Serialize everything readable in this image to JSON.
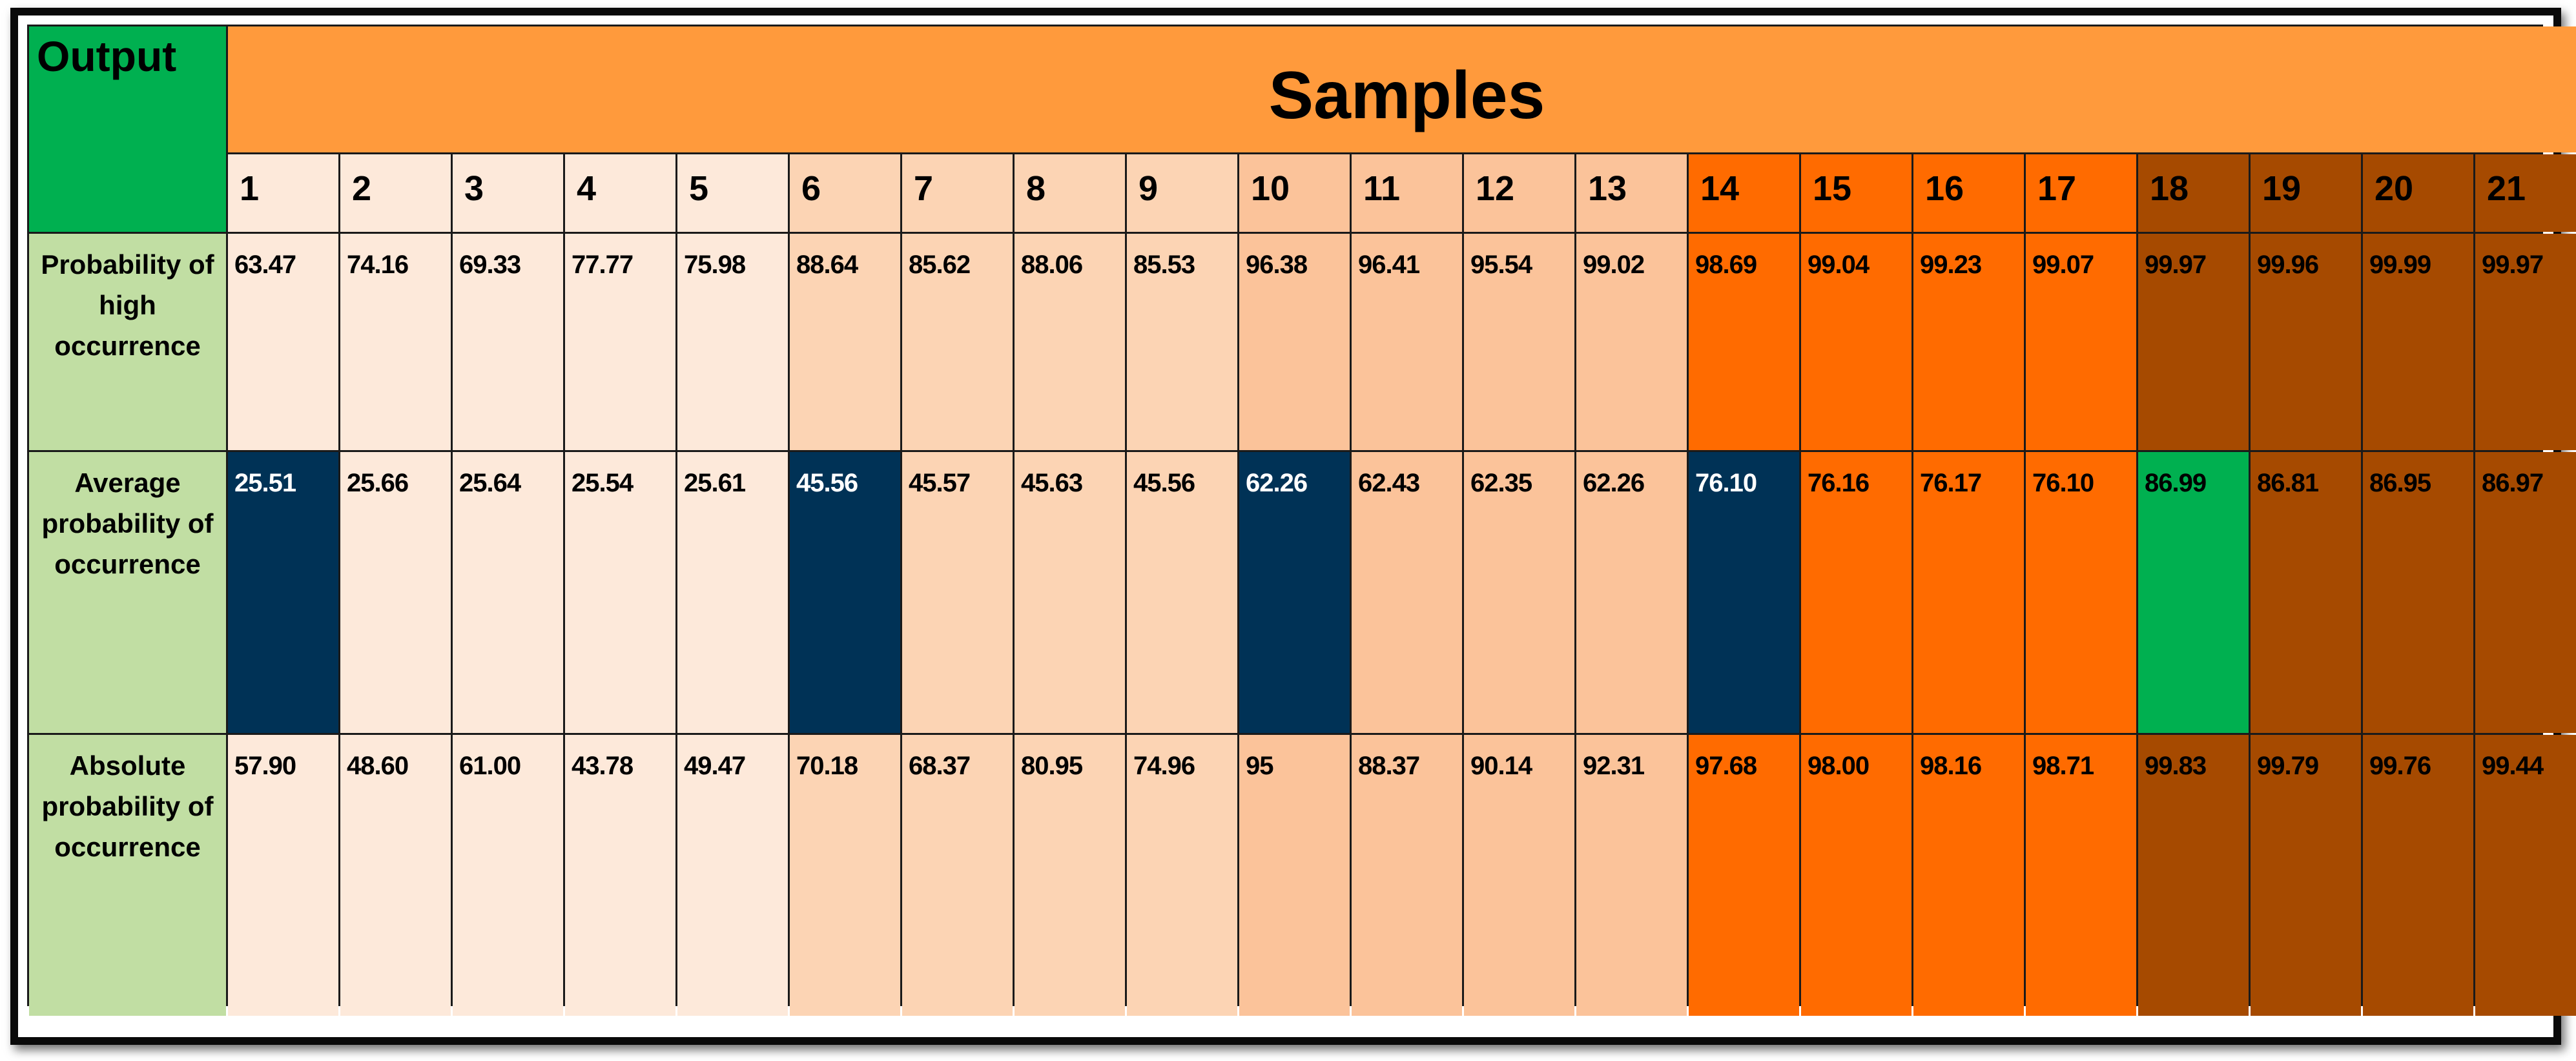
{
  "chart_data": {
    "type": "table",
    "corner_label": "Output",
    "group_header": "Samples",
    "columns": [
      "1",
      "2",
      "3",
      "4",
      "5",
      "6",
      "7",
      "8",
      "9",
      "10",
      "11",
      "12",
      "13",
      "14",
      "15",
      "16",
      "17",
      "18",
      "19",
      "20",
      "21"
    ],
    "rows": [
      {
        "label": "Probability of high occurrence",
        "values": [
          "63.47",
          "74.16",
          "69.33",
          "77.77",
          "75.98",
          "88.64",
          "85.62",
          "88.06",
          "85.53",
          "96.38",
          "96.41",
          "95.54",
          "99.02",
          "98.69",
          "99.04",
          "99.23",
          "99.07",
          "99.97",
          "99.96",
          "99.99",
          "99.97"
        ]
      },
      {
        "label": "Average probability of occurrence",
        "values": [
          "25.51",
          "25.66",
          "25.64",
          "25.54",
          "25.61",
          "45.56",
          "45.57",
          "45.63",
          "45.56",
          "62.26",
          "62.43",
          "62.35",
          "62.26",
          "76.10",
          "76.16",
          "76.17",
          "76.10",
          "86.99",
          "86.81",
          "86.95",
          "86.97"
        ]
      },
      {
        "label": "Absolute probability of occurrence",
        "values": [
          "57.90",
          "48.60",
          "61.00",
          "43.78",
          "49.47",
          "70.18",
          "68.37",
          "80.95",
          "74.96",
          "95",
          "88.37",
          "90.14",
          "92.31",
          "97.68",
          "98.00",
          "98.16",
          "98.71",
          "99.83",
          "99.79",
          "99.76",
          "99.44"
        ]
      }
    ],
    "column_groups": [
      1,
      1,
      1,
      1,
      1,
      2,
      2,
      2,
      2,
      3,
      3,
      3,
      3,
      4,
      4,
      4,
      4,
      5,
      5,
      5,
      5
    ],
    "highlighted_cells": [
      {
        "row": 1,
        "col": 0,
        "color": "#003256"
      },
      {
        "row": 1,
        "col": 5,
        "color": "#003256"
      },
      {
        "row": 1,
        "col": 9,
        "color": "#003256"
      },
      {
        "row": 1,
        "col": 13,
        "color": "#003256"
      },
      {
        "row": 1,
        "col": 17,
        "color": "#00b050"
      }
    ],
    "colors": {
      "corner": "#00b050",
      "samples_header": "#ff9a3c",
      "row_label": "#c1dea3",
      "group1": "#fde9da",
      "group2": "#fcd4b4",
      "group3": "#fbc39a",
      "group4": "#ff6b00",
      "group5": "#a64a00"
    }
  }
}
